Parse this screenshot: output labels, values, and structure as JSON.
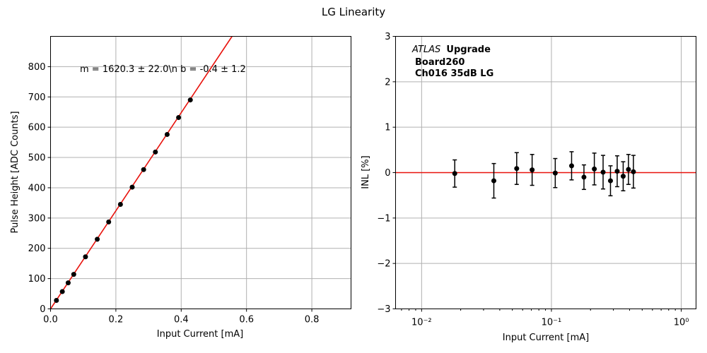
{
  "figure": {
    "suptitle": "LG Linearity"
  },
  "chart_data": [
    {
      "type": "scatter",
      "xlabel": "Input Current [mA]",
      "ylabel": "Pulse Height [ADC Counts]",
      "xlim": [
        0,
        0.92
      ],
      "ylim": [
        0,
        900
      ],
      "xticks": [
        0.0,
        0.2,
        0.4,
        0.6,
        0.8
      ],
      "xtick_labels": [
        "0.0",
        "0.2",
        "0.4",
        "0.6",
        "0.8"
      ],
      "yticks": [
        0,
        100,
        200,
        300,
        400,
        500,
        600,
        700,
        800
      ],
      "ytick_labels": [
        "0",
        "100",
        "200",
        "300",
        "400",
        "500",
        "600",
        "700",
        "800"
      ],
      "grid": true,
      "annotation": "m = 1620.3 ± 22.0\\n b = -0.4 ± 1.2",
      "fit_line": {
        "slope": 1620.3,
        "intercept": -0.4,
        "color": "#e8120c"
      },
      "series": [
        {
          "color": "#000000",
          "x": [
            0.018,
            0.036,
            0.054,
            0.071,
            0.107,
            0.143,
            0.178,
            0.214,
            0.25,
            0.285,
            0.321,
            0.357,
            0.392,
            0.428
          ],
          "y": [
            28,
            57,
            86,
            114,
            172,
            230,
            287,
            345,
            402,
            460,
            518,
            576,
            632,
            690
          ]
        }
      ]
    },
    {
      "type": "scatter",
      "xscale": "log",
      "xlabel": "Input Current [mA]",
      "ylabel": "INL [%]",
      "xlim": [
        0.0063,
        1.3
      ],
      "ylim": [
        -3,
        3
      ],
      "xticks": [
        0.01,
        0.1,
        1
      ],
      "xtick_labels": [
        "10⁻²",
        "10⁻¹",
        "10⁰"
      ],
      "yticks": [
        -3,
        -2,
        -1,
        0,
        1,
        2,
        3
      ],
      "ytick_labels": [
        "−3",
        "−2",
        "−1",
        "0",
        "1",
        "2",
        "3"
      ],
      "grid": true,
      "label_lines": [
        {
          "italic": "ATLAS",
          "bold": "Upgrade"
        },
        {
          "bold": "Board260"
        },
        {
          "bold": "Ch016 35dB LG"
        }
      ],
      "reference_line": {
        "y": 0,
        "color": "#e8120c"
      },
      "series": [
        {
          "color": "#000000",
          "x": [
            0.018,
            0.036,
            0.054,
            0.071,
            0.107,
            0.143,
            0.178,
            0.214,
            0.25,
            0.285,
            0.321,
            0.357,
            0.392,
            0.428
          ],
          "y": [
            -0.02,
            -0.18,
            0.09,
            0.06,
            -0.01,
            0.15,
            -0.1,
            0.08,
            0.01,
            -0.18,
            0.03,
            -0.08,
            0.07,
            0.02
          ],
          "yerr": [
            0.3,
            0.38,
            0.35,
            0.34,
            0.32,
            0.31,
            0.27,
            0.35,
            0.37,
            0.33,
            0.34,
            0.32,
            0.33,
            0.36
          ]
        }
      ]
    }
  ]
}
